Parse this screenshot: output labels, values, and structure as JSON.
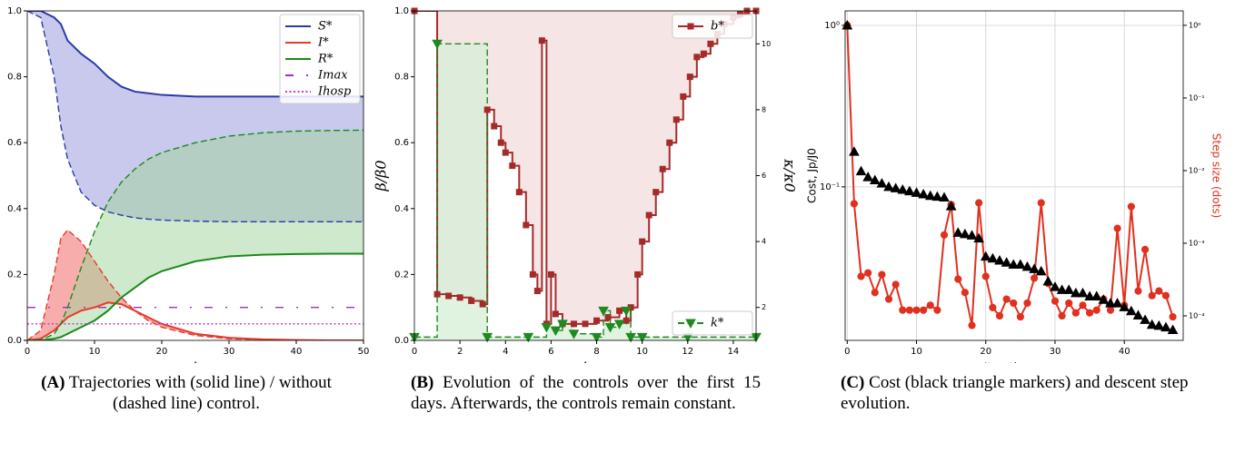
{
  "chart_data": [
    {
      "type": "line",
      "xlabel": "t",
      "xlim": [
        0,
        50
      ],
      "ylim": [
        0,
        1
      ],
      "xticks": [
        0,
        10,
        20,
        30,
        40,
        50
      ],
      "yticks": [
        {
          "value": 0,
          "label": "0.0"
        },
        {
          "value": 0.2,
          "label": "0.2"
        },
        {
          "value": 0.4,
          "label": "0.4"
        },
        {
          "value": 0.6,
          "label": "0.6"
        },
        {
          "value": 0.8,
          "label": "0.8"
        },
        {
          "value": 1,
          "label": "1.0"
        }
      ],
      "legend": "upper right",
      "x": [
        0,
        2,
        4,
        5,
        6,
        8,
        10,
        12,
        14,
        16,
        18,
        20,
        25,
        30,
        35,
        40,
        45,
        50
      ],
      "series": [
        {
          "name": "S*",
          "color": "#2b3aa8",
          "style": "solid",
          "values": [
            1,
            1,
            0.98,
            0.96,
            0.91,
            0.87,
            0.84,
            0.8,
            0.77,
            0.755,
            0.75,
            0.745,
            0.74,
            0.74,
            0.74,
            0.74,
            0.74,
            0.74
          ]
        },
        {
          "name": "I*",
          "color": "#e8392a",
          "style": "solid",
          "values": [
            0,
            0.005,
            0.03,
            0.05,
            0.07,
            0.09,
            0.1,
            0.115,
            0.11,
            0.09,
            0.07,
            0.05,
            0.02,
            0.008,
            0.003,
            0.001,
            0,
            0
          ]
        },
        {
          "name": "R*",
          "color": "#1a8a1a",
          "style": "solid",
          "values": [
            0,
            0,
            0.005,
            0.01,
            0.02,
            0.04,
            0.06,
            0.09,
            0.13,
            0.16,
            0.19,
            0.21,
            0.24,
            0.255,
            0.26,
            0.262,
            0.263,
            0.263
          ]
        },
        {
          "name": "Imax",
          "color": "#9b2fc6",
          "style": "dashdot",
          "values": [
            0.1,
            0.1,
            0.1,
            0.1,
            0.1,
            0.1,
            0.1,
            0.1,
            0.1,
            0.1,
            0.1,
            0.1,
            0.1,
            0.1,
            0.1,
            0.1,
            0.1,
            0.1
          ]
        },
        {
          "name": "Ihosp",
          "color": "#cc33cc",
          "style": "dotted",
          "values": [
            0.05,
            0.05,
            0.05,
            0.05,
            0.05,
            0.05,
            0.05,
            0.05,
            0.05,
            0.05,
            0.05,
            0.05,
            0.05,
            0.05,
            0.05,
            0.05,
            0.05,
            0.05
          ]
        },
        {
          "color": "#2b3aa8",
          "style": "dashed",
          "fill_to": 0,
          "fill_color": "#9494dc",
          "values": [
            1,
            0.98,
            0.8,
            0.65,
            0.55,
            0.45,
            0.41,
            0.39,
            0.38,
            0.372,
            0.368,
            0.365,
            0.362,
            0.36,
            0.36,
            0.36,
            0.36,
            0.36
          ]
        },
        {
          "color": "#e8392a",
          "style": "dashed",
          "fill_to": 1,
          "fill_color": "#f25c5c",
          "values": [
            0,
            0.03,
            0.2,
            0.31,
            0.335,
            0.3,
            0.24,
            0.18,
            0.13,
            0.09,
            0.06,
            0.04,
            0.015,
            0.005,
            0.002,
            0,
            0,
            0
          ]
        },
        {
          "color": "#1a8a1a",
          "style": "dashed",
          "fill_to": 2,
          "fill_color": "#9fd49a",
          "values": [
            0,
            0,
            0.02,
            0.05,
            0.1,
            0.22,
            0.33,
            0.42,
            0.48,
            0.52,
            0.55,
            0.57,
            0.6,
            0.62,
            0.63,
            0.635,
            0.637,
            0.638
          ]
        }
      ],
      "caption_tag": "(A)",
      "caption": "Trajectories with (solid line) / without (dashed line) control."
    },
    {
      "type": "line",
      "xlabel": "t",
      "ylabel": "β/β0",
      "y2label": "κ/κ0",
      "xlim": [
        0,
        15
      ],
      "ylim": [
        0,
        1
      ],
      "y2lim": [
        1,
        11
      ],
      "xticks": [
        0,
        2,
        4,
        6,
        8,
        10,
        12,
        14
      ],
      "yticks": [
        {
          "value": 0,
          "label": "0.0"
        },
        {
          "value": 0.2,
          "label": "0.2"
        },
        {
          "value": 0.4,
          "label": "0.4"
        },
        {
          "value": 0.6,
          "label": "0.6"
        },
        {
          "value": 0.8,
          "label": "0.8"
        },
        {
          "value": 1,
          "label": "1.0"
        }
      ],
      "y2ticks": [
        2,
        4,
        6,
        8,
        10
      ],
      "series": [
        {
          "name": "b*",
          "color": "#a52a2a",
          "style": "solid",
          "step": "post",
          "marker": "square",
          "fill_to": "top",
          "fill_color": "#f3dede",
          "legend": "upper right",
          "x": [
            0,
            1,
            1.5,
            2,
            2.5,
            3,
            3.2,
            3.5,
            3.8,
            4,
            4.3,
            4.6,
            4.9,
            5.2,
            5.4,
            5.6,
            5.8,
            6,
            6.2,
            6.5,
            7,
            7.5,
            8,
            8.5,
            9,
            9.3,
            9.5,
            9.8,
            10,
            10.3,
            10.6,
            10.9,
            11.2,
            11.5,
            11.8,
            12.1,
            12.4,
            12.7,
            13,
            13.3,
            13.6,
            14,
            14.3,
            14.6,
            15
          ],
          "values": [
            1,
            0.14,
            0.135,
            0.13,
            0.12,
            0.11,
            0.7,
            0.65,
            0.6,
            0.57,
            0.53,
            0.45,
            0.35,
            0.2,
            0.15,
            0.91,
            0.05,
            0.2,
            0.08,
            0.05,
            0.05,
            0.05,
            0.06,
            0.07,
            0.09,
            0.06,
            0.1,
            0.2,
            0.3,
            0.38,
            0.45,
            0.52,
            0.6,
            0.67,
            0.74,
            0.8,
            0.86,
            0.87,
            0.9,
            0.93,
            0.96,
            0.98,
            0.99,
            1,
            1
          ]
        },
        {
          "name": "k*",
          "color": "#1f8a1f",
          "style": "dashed",
          "step": "post",
          "marker": "triangle-down",
          "fill_to": "bottom",
          "fill_color": "#d8efd8",
          "legend": "lower right",
          "axis": "y2",
          "x": [
            0,
            1,
            3.2,
            5,
            5.8,
            6.2,
            6.5,
            7,
            8,
            8.3,
            8.6,
            9,
            9.3,
            9.5,
            10,
            12,
            15
          ],
          "values": [
            1.1,
            10,
            1.1,
            1.1,
            1.4,
            1.3,
            1.5,
            1.2,
            1.1,
            1.9,
            1.4,
            1.5,
            1.9,
            1.1,
            1.1,
            1.1,
            1.1
          ]
        }
      ],
      "caption_tag": "(B)",
      "caption": "Evolution of the controls over the first 15 days. Afterwards, the controls remain constant."
    },
    {
      "type": "line",
      "xlabel": "Iteration, p",
      "ylabel": "Cost, Jp/J0",
      "y2label": "Step size (dots)",
      "y2label_color": "#e0301e",
      "xlim": [
        -0.3,
        48.5
      ],
      "ylim": [
        0.0112,
        1.23
      ],
      "y2lim": [
        4.6e-05,
        1.58
      ],
      "yscale": "log",
      "y2scale": "log",
      "grid": true,
      "xticks": [
        0,
        10,
        20,
        30,
        40
      ],
      "yticks": [
        {
          "value": 0.1,
          "label": "10⁻¹"
        },
        {
          "value": 1,
          "label": "10⁰"
        }
      ],
      "y2ticks": [
        {
          "value": 0.0001,
          "label": "10⁻⁴"
        },
        {
          "value": 0.001,
          "label": "10⁻³"
        },
        {
          "value": 0.01,
          "label": "10⁻²"
        },
        {
          "value": 0.1,
          "label": "10⁻¹"
        },
        {
          "value": 1,
          "label": "10⁰"
        }
      ],
      "x": [
        0,
        1,
        2,
        3,
        4,
        5,
        6,
        7,
        8,
        9,
        10,
        11,
        12,
        13,
        14,
        15,
        16,
        17,
        18,
        19,
        20,
        21,
        22,
        23,
        24,
        25,
        26,
        27,
        28,
        29,
        30,
        31,
        32,
        33,
        34,
        35,
        36,
        37,
        38,
        39,
        40,
        41,
        42,
        43,
        44,
        45,
        46,
        47
      ],
      "series": [
        {
          "color": "#e0301e",
          "style": "solid",
          "marker": "circle",
          "axis": "y2",
          "values": [
            1,
            0.0035,
            0.00035,
            0.00039,
            0.00021,
            0.00037,
            0.00017,
            0.00027,
            0.00012,
            0.00012,
            0.00012,
            0.00012,
            0.00014,
            0.00012,
            0.0013,
            0.0034,
            0.00032,
            0.00021,
            7.4e-05,
            0.0036,
            0.00035,
            0.00013,
            0.0001,
            0.00017,
            0.00015,
            9.7e-05,
            0.00015,
            0.00033,
            0.0036,
            0.00028,
            0.00016,
            0.0001,
            0.00015,
            0.00011,
            0.00014,
            0.00011,
            0.00012,
            0.00017,
            0.00012,
            0.0016,
            0.00014,
            0.0032,
            0.00022,
            0.00082,
            0.00019,
            0.00022,
            0.00019,
            9.7e-05
          ]
        },
        {
          "color": "#000000",
          "style": "none",
          "marker": "triangle",
          "values": [
            1,
            0.165,
            0.125,
            0.115,
            0.11,
            0.105,
            0.1,
            0.098,
            0.096,
            0.094,
            0.092,
            0.09,
            0.088,
            0.087,
            0.086,
            0.076,
            0.052,
            0.051,
            0.05,
            0.048,
            0.037,
            0.036,
            0.035,
            0.034,
            0.033,
            0.033,
            0.032,
            0.031,
            0.03,
            0.026,
            0.024,
            0.023,
            0.023,
            0.022,
            0.022,
            0.021,
            0.021,
            0.02,
            0.019,
            0.019,
            0.018,
            0.017,
            0.016,
            0.015,
            0.014,
            0.0138,
            0.0135,
            0.013
          ]
        }
      ],
      "caption_tag": "(C)",
      "caption": "Cost (black triangle markers) and descent step evolution."
    }
  ]
}
